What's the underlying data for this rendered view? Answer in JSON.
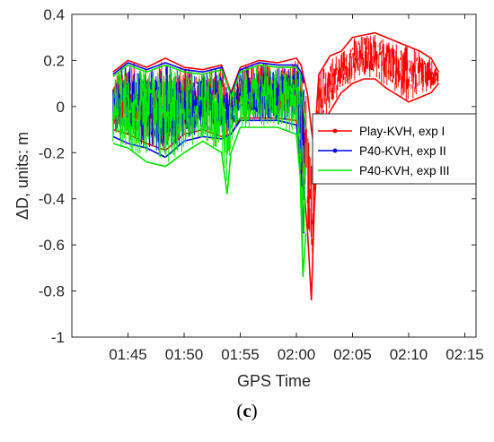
{
  "chart_data": {
    "type": "line",
    "title": "",
    "xlabel": "GPS Time",
    "ylabel_prefix": "Δ",
    "ylabel_rest": "D, units: m",
    "xlim": [
      "01:40",
      "02:16"
    ],
    "ylim": [
      -1,
      0.4
    ],
    "x_ticks": [
      "01:45",
      "01:50",
      "01:55",
      "02:00",
      "02:05",
      "02:10",
      "02:15"
    ],
    "y_ticks": [
      "0.4",
      "0.2",
      "0",
      "-0.2",
      "-0.4",
      "-0.6",
      "-0.8",
      "-1"
    ],
    "grid": false,
    "legend_position": "right",
    "series": [
      {
        "name": "Play-KVH, exp I",
        "color": "#ff0000",
        "marker": "dot",
        "envelope": {
          "x": [
            "01:43:40",
            "01:45:00",
            "01:46:40",
            "01:48:20",
            "01:50:00",
            "01:51:40",
            "01:53:20",
            "01:54:10",
            "01:55:00",
            "01:56:40",
            "01:58:20",
            "02:00:00",
            "02:00:25",
            "02:01:00",
            "02:01:20",
            "02:01:35",
            "02:02:00",
            "02:03:00",
            "02:04:00",
            "02:05:00",
            "02:06:00",
            "02:07:00",
            "02:08:00",
            "02:09:00",
            "02:10:00",
            "02:11:00",
            "02:12:00",
            "02:12:40"
          ],
          "upper": [
            0.15,
            0.2,
            0.17,
            0.21,
            0.17,
            0.16,
            0.18,
            0.06,
            0.17,
            0.2,
            0.19,
            0.21,
            0.18,
            0.05,
            -0.1,
            -0.18,
            0.14,
            0.22,
            0.24,
            0.3,
            0.31,
            0.32,
            0.3,
            0.28,
            0.26,
            0.24,
            0.21,
            0.15
          ],
          "lower": [
            -0.1,
            -0.12,
            -0.16,
            -0.19,
            -0.12,
            -0.1,
            -0.13,
            -0.12,
            -0.05,
            -0.05,
            -0.05,
            -0.06,
            -0.2,
            -0.55,
            -0.84,
            -0.45,
            -0.1,
            -0.02,
            0.06,
            0.1,
            0.12,
            0.12,
            0.08,
            0.05,
            0.02,
            0.04,
            0.06,
            0.1
          ]
        }
      },
      {
        "name": "P40-KVH, exp II",
        "color": "#0000ff",
        "marker": "dot",
        "envelope": {
          "x": [
            "01:43:40",
            "01:45:00",
            "01:46:40",
            "01:48:20",
            "01:50:00",
            "01:51:40",
            "01:53:20",
            "01:54:10",
            "01:55:00",
            "01:56:40",
            "01:58:20",
            "02:00:00",
            "02:00:25",
            "02:00:40"
          ],
          "upper": [
            0.14,
            0.19,
            0.16,
            0.19,
            0.16,
            0.15,
            0.17,
            0.05,
            0.16,
            0.19,
            0.18,
            0.18,
            0.15,
            0.1
          ],
          "lower": [
            -0.13,
            -0.16,
            -0.18,
            -0.22,
            -0.15,
            -0.13,
            -0.14,
            -0.12,
            -0.06,
            -0.06,
            -0.06,
            -0.08,
            -0.28,
            -0.55
          ]
        }
      },
      {
        "name": "P40-KVH, exp III",
        "color": "#00e600",
        "marker": "none",
        "envelope": {
          "x": [
            "01:43:40",
            "01:45:00",
            "01:46:40",
            "01:48:20",
            "01:50:00",
            "01:51:40",
            "01:53:20",
            "01:53:50",
            "01:54:10",
            "01:55:00",
            "01:56:40",
            "01:58:20",
            "02:00:00",
            "02:00:20",
            "02:00:35",
            "02:00:50"
          ],
          "upper": [
            0.13,
            0.18,
            0.15,
            0.18,
            0.15,
            0.14,
            0.16,
            0.1,
            0.04,
            0.15,
            0.18,
            0.17,
            0.17,
            0.14,
            0.02,
            -0.1
          ],
          "lower": [
            -0.16,
            -0.18,
            -0.24,
            -0.26,
            -0.2,
            -0.15,
            -0.2,
            -0.38,
            -0.2,
            -0.09,
            -0.09,
            -0.09,
            -0.12,
            -0.3,
            -0.74,
            -0.55
          ]
        }
      }
    ]
  },
  "caption": "(c)"
}
